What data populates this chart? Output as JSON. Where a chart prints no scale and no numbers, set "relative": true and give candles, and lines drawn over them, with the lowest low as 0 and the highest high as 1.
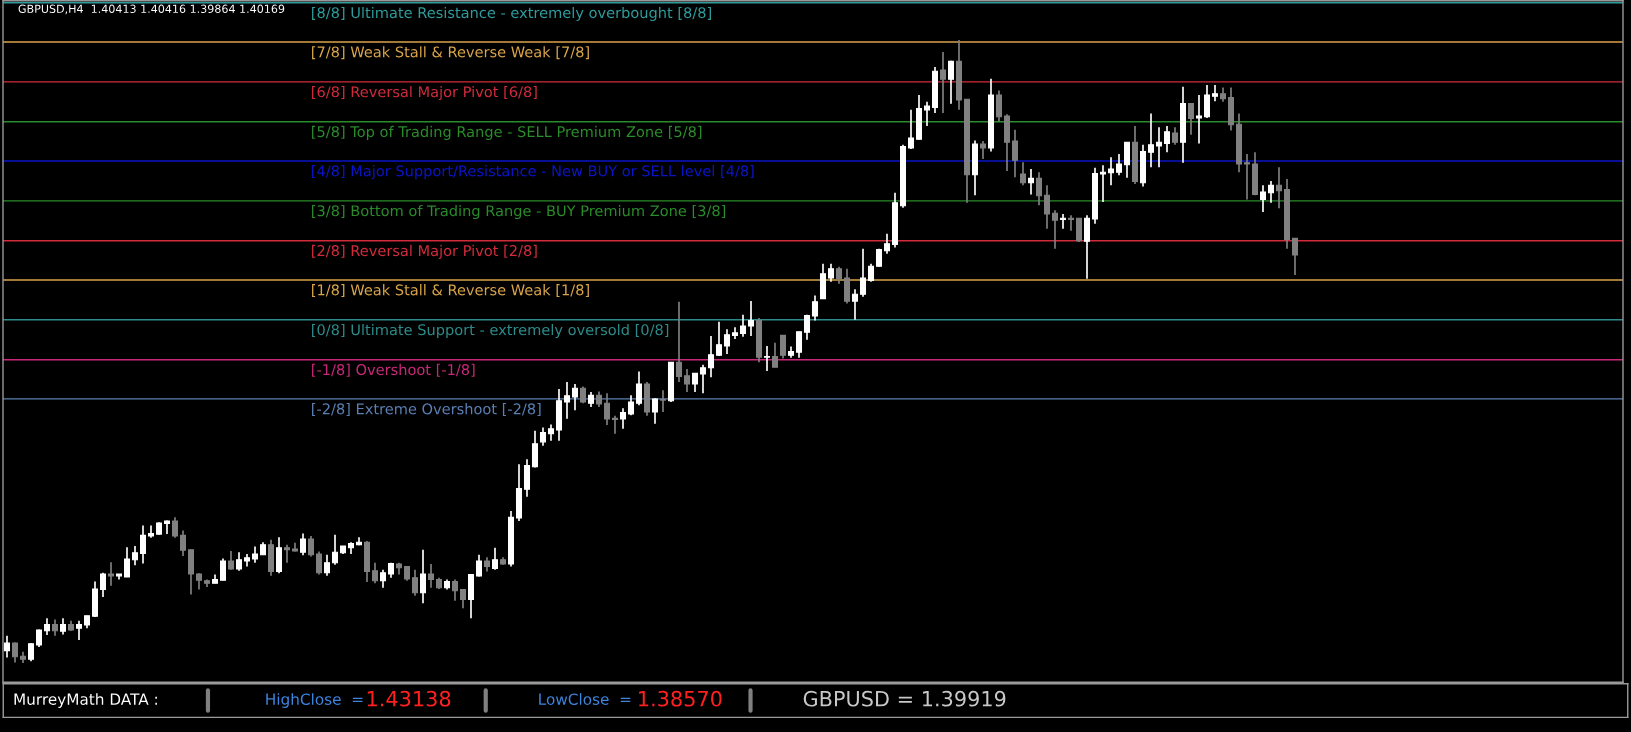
{
  "chart_data": {
    "type": "candlestick",
    "relative": true,
    "title": "GBPUSD,H4  1.40413 1.40416 1.39864 1.40169",
    "colors": [
      "#ffffff",
      "#808080",
      "#808080",
      "#ffffff",
      "#ffffff",
      "#ffffff",
      "#808080",
      "#ffffff",
      "#808080",
      "#ffffff",
      "#ffffff",
      "#ffffff",
      "#ffffff",
      "#808080",
      "#ffffff",
      "#ffffff",
      "#ffffff",
      "#ffffff",
      "#ffffff",
      "#ffffff",
      "#ffffff",
      "#808080",
      "#808080",
      "#808080",
      "#808080",
      "#808080",
      "#ffffff",
      "#ffffff",
      "#808080",
      "#ffffff",
      "#ffffff",
      "#ffffff",
      "#ffffff",
      "#808080",
      "#ffffff",
      "#808080",
      "#808080",
      "#ffffff",
      "#808080",
      "#808080",
      "#ffffff",
      "#ffffff",
      "#ffffff",
      "#ffffff",
      "#ffffff",
      "#808080",
      "#808080",
      "#ffffff",
      "#ffffff",
      "#808080",
      "#808080",
      "#808080",
      "#ffffff",
      "#808080",
      "#808080",
      "#ffffff",
      "#808080",
      "#808080",
      "#ffffff",
      "#ffffff",
      "#808080",
      "#ffffff",
      "#808080",
      "#ffffff",
      "#ffffff",
      "#ffffff",
      "#ffffff",
      "#ffffff",
      "#ffffff",
      "#ffffff",
      "#ffffff",
      "#ffffff",
      "#808080",
      "#ffffff",
      "#808080",
      "#808080",
      "#808080",
      "#ffffff",
      "#ffffff",
      "#ffffff",
      "#808080",
      "#ffffff",
      "#808080",
      "#ffffff",
      "#808080",
      "#808080",
      "#ffffff",
      "#ffffff",
      "#ffffff",
      "#ffffff",
      "#ffffff",
      "#ffffff",
      "#ffffff",
      "#ffffff",
      "#808080",
      "#ffffff",
      "#808080",
      "#808080",
      "#ffffff",
      "#ffffff",
      "#ffffff",
      "#ffffff",
      "#ffffff",
      "#ffffff",
      "#808080",
      "#808080",
      "#ffffff",
      "#ffffff",
      "#ffffff",
      "#ffffff",
      "#ffffff",
      "#ffffff",
      "#ffffff",
      "#ffffff",
      "#ffffff",
      "#ffffff",
      "#ffffff",
      "#808080",
      "#ffffff",
      "#808080",
      "#808080",
      "#ffffff",
      "#808080",
      "#ffffff",
      "#808080",
      "#808080",
      "#808080",
      "#808080",
      "#ffffff",
      "#808080",
      "#808080",
      "#808080",
      "#ffffff",
      "#808080",
      "#808080",
      "#ffffff",
      "#ffffff",
      "#ffffff",
      "#ffffff",
      "#ffffff",
      "#ffffff",
      "#808080",
      "#ffffff",
      "#ffffff",
      "#ffffff",
      "#ffffff",
      "#808080",
      "#ffffff",
      "#808080",
      "#ffffff",
      "#ffffff",
      "#ffffff",
      "#808080",
      "#808080",
      "#808080",
      "#808080",
      "#808080",
      "#ffffff",
      "#ffffff",
      "#808080",
      "#808080",
      "#808080"
    ],
    "categories": [
      null,
      null,
      null,
      null,
      null,
      null,
      null,
      null,
      null,
      null,
      null,
      null,
      null,
      null,
      null,
      null,
      null,
      null,
      null,
      null,
      null,
      null,
      null,
      null,
      null,
      null,
      null,
      null,
      null,
      null,
      null,
      null,
      null,
      null,
      null,
      null,
      null,
      null,
      null,
      null,
      null,
      null,
      null,
      null,
      null,
      null,
      null,
      null,
      null,
      null,
      null,
      null,
      null,
      null,
      null,
      null,
      null,
      null,
      null,
      null,
      null,
      null,
      null,
      null,
      null,
      null,
      null,
      null,
      null,
      null,
      null,
      null,
      null,
      null,
      null,
      null,
      null,
      null,
      null,
      null,
      null,
      null,
      null,
      null,
      null,
      null,
      null,
      null,
      null,
      null,
      null,
      null,
      null,
      null,
      null,
      null,
      null,
      null,
      null,
      null,
      null,
      null,
      null,
      null,
      null,
      null,
      null,
      null,
      null,
      null,
      null,
      null,
      null,
      null,
      null,
      null,
      null,
      null,
      null,
      null,
      null,
      null,
      null,
      null,
      null,
      null,
      null,
      null,
      null,
      null,
      null,
      null,
      null,
      null,
      null,
      null,
      null,
      null,
      null,
      null,
      null,
      null,
      null,
      null,
      null,
      null,
      null,
      null,
      null,
      null,
      null,
      null,
      null,
      null,
      null,
      null,
      null,
      null,
      null,
      null,
      null,
      null
    ],
    "ohlc": [
      [
        0.02,
        0.044,
        0.009,
        0.032
      ],
      [
        0.032,
        0.033,
        0.001,
        0.01
      ],
      [
        0.011,
        0.018,
        0,
        0.006
      ],
      [
        0.006,
        0.032,
        0.003,
        0.031
      ],
      [
        0.029,
        0.054,
        0.026,
        0.053
      ],
      [
        0.052,
        0.072,
        0.045,
        0.062
      ],
      [
        0.062,
        0.07,
        0.044,
        0.052
      ],
      [
        0.051,
        0.072,
        0.046,
        0.062
      ],
      [
        0.062,
        0.068,
        0.052,
        0.053
      ],
      [
        0.056,
        0.068,
        0.037,
        0.062
      ],
      [
        0.061,
        0.076,
        0.056,
        0.076
      ],
      [
        0.075,
        0.131,
        0.074,
        0.119
      ],
      [
        0.118,
        0.145,
        0.106,
        0.143
      ],
      [
        0.143,
        0.162,
        0.124,
        0.14
      ],
      [
        0.14,
        0.143,
        0.134,
        0.143
      ],
      [
        0.138,
        0.186,
        0.138,
        0.167
      ],
      [
        0.166,
        0.188,
        0.157,
        0.177
      ],
      [
        0.176,
        0.221,
        0.16,
        0.205
      ],
      [
        0.204,
        0.221,
        0.201,
        0.208
      ],
      [
        0.207,
        0.226,
        0.206,
        0.225
      ],
      [
        0.224,
        0.229,
        0.207,
        0.228
      ],
      [
        0.228,
        0.234,
        0.201,
        0.204
      ],
      [
        0.205,
        0.213,
        0.172,
        0.181
      ],
      [
        0.182,
        0.182,
        0.11,
        0.143
      ],
      [
        0.143,
        0.144,
        0.118,
        0.133
      ],
      [
        0.132,
        0.134,
        0.122,
        0.128
      ],
      [
        0.128,
        0.142,
        0.128,
        0.134
      ],
      [
        0.133,
        0.168,
        0.133,
        0.164
      ],
      [
        0.164,
        0.18,
        0.15,
        0.151
      ],
      [
        0.151,
        0.178,
        0.148,
        0.166
      ],
      [
        0.164,
        0.175,
        0.155,
        0.169
      ],
      [
        0.167,
        0.187,
        0.161,
        0.175
      ],
      [
        0.174,
        0.194,
        0.174,
        0.19
      ],
      [
        0.19,
        0.198,
        0.14,
        0.147
      ],
      [
        0.147,
        0.202,
        0.144,
        0.185
      ],
      [
        0.185,
        0.19,
        0.161,
        0.182
      ],
      [
        0.183,
        0.193,
        0.179,
        0.18
      ],
      [
        0.178,
        0.208,
        0.173,
        0.199
      ],
      [
        0.199,
        0.204,
        0.171,
        0.174
      ],
      [
        0.175,
        0.179,
        0.142,
        0.145
      ],
      [
        0.145,
        0.174,
        0.14,
        0.161
      ],
      [
        0.161,
        0.206,
        0.158,
        0.178
      ],
      [
        0.177,
        0.188,
        0.175,
        0.188
      ],
      [
        0.185,
        0.194,
        0.175,
        0.192
      ],
      [
        0.19,
        0.202,
        0.189,
        0.194
      ],
      [
        0.194,
        0.196,
        0.13,
        0.147
      ],
      [
        0.148,
        0.161,
        0.128,
        0.132
      ],
      [
        0.132,
        0.15,
        0.121,
        0.145
      ],
      [
        0.143,
        0.161,
        0.137,
        0.16
      ],
      [
        0.159,
        0.161,
        0.142,
        0.153
      ],
      [
        0.155,
        0.156,
        0.132,
        0.135
      ],
      [
        0.137,
        0.15,
        0.108,
        0.113
      ],
      [
        0.113,
        0.182,
        0.096,
        0.143
      ],
      [
        0.143,
        0.159,
        0.121,
        0.134
      ],
      [
        0.134,
        0.137,
        0.119,
        0.121
      ],
      [
        0.121,
        0.134,
        0.118,
        0.131
      ],
      [
        0.131,
        0.134,
        0.1,
        0.116
      ],
      [
        0.118,
        0.118,
        0.088,
        0.102
      ],
      [
        0.102,
        0.143,
        0.072,
        0.142
      ],
      [
        0.14,
        0.174,
        0.139,
        0.164
      ],
      [
        0.164,
        0.17,
        0.147,
        0.155
      ],
      [
        0.152,
        0.185,
        0.15,
        0.166
      ],
      [
        0.166,
        0.17,
        0.158,
        0.159
      ],
      [
        0.159,
        0.244,
        0.155,
        0.234
      ],
      [
        0.233,
        0.319,
        0.228,
        0.28
      ],
      [
        0.279,
        0.327,
        0.267,
        0.317
      ],
      [
        0.315,
        0.373,
        0.314,
        0.352
      ],
      [
        0.355,
        0.378,
        0.349,
        0.37
      ],
      [
        0.368,
        0.383,
        0.357,
        0.376
      ],
      [
        0.374,
        0.44,
        0.357,
        0.421
      ],
      [
        0.419,
        0.451,
        0.392,
        0.429
      ],
      [
        0.427,
        0.448,
        0.406,
        0.441
      ],
      [
        0.441,
        0.444,
        0.417,
        0.419
      ],
      [
        0.417,
        0.435,
        0.411,
        0.43
      ],
      [
        0.43,
        0.436,
        0.411,
        0.416
      ],
      [
        0.417,
        0.433,
        0.382,
        0.392
      ],
      [
        0.393,
        0.397,
        0.368,
        0.391
      ],
      [
        0.392,
        0.409,
        0.376,
        0.402
      ],
      [
        0.4,
        0.43,
        0.398,
        0.419
      ],
      [
        0.417,
        0.468,
        0.414,
        0.448
      ],
      [
        0.448,
        0.451,
        0.397,
        0.403
      ],
      [
        0.403,
        0.425,
        0.384,
        0.424
      ],
      [
        0.423,
        0.438,
        0.403,
        0.422
      ],
      [
        0.421,
        0.483,
        0.419,
        0.483
      ],
      [
        0.483,
        0.58,
        0.451,
        0.46
      ],
      [
        0.461,
        0.472,
        0.435,
        0.448
      ],
      [
        0.448,
        0.465,
        0.435,
        0.465
      ],
      [
        0.464,
        0.479,
        0.433,
        0.474
      ],
      [
        0.474,
        0.525,
        0.459,
        0.495
      ],
      [
        0.494,
        0.548,
        0.493,
        0.511
      ],
      [
        0.509,
        0.536,
        0.496,
        0.527
      ],
      [
        0.526,
        0.539,
        0.52,
        0.53
      ],
      [
        0.529,
        0.559,
        0.524,
        0.541
      ],
      [
        0.541,
        0.581,
        0.525,
        0.55
      ],
      [
        0.55,
        0.554,
        0.483,
        0.491
      ],
      [
        0.491,
        0.509,
        0.469,
        0.492
      ],
      [
        0.492,
        0.514,
        0.475,
        0.475
      ],
      [
        0.526,
        0.526,
        0.489,
        0.494
      ],
      [
        0.494,
        0.508,
        0.49,
        0.5
      ],
      [
        0.499,
        0.532,
        0.49,
        0.532
      ],
      [
        0.531,
        0.559,
        0.519,
        0.558
      ],
      [
        0.557,
        0.59,
        0.55,
        0.58
      ],
      [
        0.585,
        0.641,
        0.585,
        0.625
      ],
      [
        0.618,
        0.641,
        0.612,
        0.633
      ],
      [
        0.633,
        0.636,
        0.609,
        0.617
      ],
      [
        0.618,
        0.633,
        0.577,
        0.581
      ],
      [
        0.581,
        0.6,
        0.551,
        0.592
      ],
      [
        0.592,
        0.665,
        0.588,
        0.618
      ],
      [
        0.614,
        0.641,
        0.612,
        0.637
      ],
      [
        0.637,
        0.665,
        0.636,
        0.664
      ],
      [
        0.662,
        0.689,
        0.657,
        0.673
      ],
      [
        0.672,
        0.755,
        0.667,
        0.739
      ],
      [
        0.734,
        0.832,
        0.731,
        0.829
      ],
      [
        0.827,
        0.888,
        0.825,
        0.843
      ],
      [
        0.841,
        0.912,
        0.84,
        0.89
      ],
      [
        0.888,
        0.901,
        0.862,
        0.894
      ],
      [
        0.892,
        0.957,
        0.883,
        0.95
      ],
      [
        0.952,
        0.981,
        0.883,
        0.937
      ],
      [
        0.937,
        0.967,
        0.898,
        0.966
      ],
      [
        0.966,
        1.0,
        0.888,
        0.904
      ],
      [
        0.905,
        0.905,
        0.739,
        0.784
      ],
      [
        0.784,
        0.839,
        0.751,
        0.833
      ],
      [
        0.833,
        0.838,
        0.809,
        0.827
      ],
      [
        0.827,
        0.938,
        0.821,
        0.912
      ],
      [
        0.912,
        0.919,
        0.869,
        0.877
      ],
      [
        0.878,
        0.881,
        0.79,
        0.836
      ],
      [
        0.838,
        0.856,
        0.78,
        0.807
      ],
      [
        0.785,
        0.804,
        0.767,
        0.771
      ],
      [
        0.771,
        0.793,
        0.752,
        0.778
      ],
      [
        0.778,
        0.788,
        0.735,
        0.75
      ],
      [
        0.751,
        0.767,
        0.697,
        0.721
      ],
      [
        0.722,
        0.727,
        0.665,
        0.711
      ],
      [
        0.712,
        0.721,
        0.697,
        0.714
      ],
      [
        0.714,
        0.719,
        0.694,
        0.712
      ],
      [
        0.714,
        0.714,
        0.676,
        0.678
      ],
      [
        0.677,
        0.719,
        0.617,
        0.714
      ],
      [
        0.713,
        0.795,
        0.705,
        0.786
      ],
      [
        0.785,
        0.799,
        0.74,
        0.788
      ],
      [
        0.787,
        0.812,
        0.767,
        0.793
      ],
      [
        0.788,
        0.817,
        0.783,
        0.801
      ],
      [
        0.8,
        0.836,
        0.779,
        0.836
      ],
      [
        0.836,
        0.862,
        0.769,
        0.773
      ],
      [
        0.771,
        0.832,
        0.765,
        0.821
      ],
      [
        0.82,
        0.882,
        0.796,
        0.832
      ],
      [
        0.83,
        0.86,
        0.796,
        0.836
      ],
      [
        0.834,
        0.862,
        0.82,
        0.853
      ],
      [
        0.851,
        0.86,
        0.832,
        0.836
      ],
      [
        0.836,
        0.925,
        0.803,
        0.898
      ],
      [
        0.898,
        0.899,
        0.848,
        0.874
      ],
      [
        0.875,
        0.912,
        0.834,
        0.878
      ],
      [
        0.877,
        0.928,
        0.875,
        0.912
      ],
      [
        0.91,
        0.928,
        0.902,
        0.914
      ],
      [
        0.914,
        0.924,
        0.901,
        0.906
      ],
      [
        0.908,
        0.924,
        0.855,
        0.864
      ],
      [
        0.865,
        0.882,
        0.788,
        0.801
      ],
      [
        0.803,
        0.817,
        0.744,
        0.801
      ],
      [
        0.801,
        0.82,
        0.751,
        0.752
      ],
      [
        0.744,
        0.767,
        0.724,
        0.756
      ],
      [
        0.755,
        0.774,
        0.739,
        0.767
      ],
      [
        0.767,
        0.796,
        0.73,
        0.758
      ],
      [
        0.76,
        0.777,
        0.665,
        0.68
      ],
      [
        0.682,
        0.682,
        0.623,
        0.655
      ]
    ],
    "ref_lines": [
      {
        "axis": "y",
        "value": 1.06,
        "label": "[8/8] Ultimate Resistance - extremely overbought [8/8]",
        "color": "#2e9c9c"
      },
      {
        "axis": "y",
        "value": 0.997,
        "label": "[7/8] Weak Stall & Reverse Weak [7/8]",
        "color": "#daa54a"
      },
      {
        "axis": "y",
        "value": 0.933,
        "label": "[6/8] Reversal Major Pivot [6/8]",
        "color": "#d22b3c"
      },
      {
        "axis": "y",
        "value": 0.869,
        "label": "[5/8] Top of Trading Range - SELL Premium Zone [5/8]",
        "color": "#2a8c2a"
      },
      {
        "axis": "y",
        "value": 0.806,
        "label": "[4/8] Major Support/Resistance - New BUY or SELL level [4/8]",
        "color": "#0a14c8"
      },
      {
        "axis": "y",
        "value": 0.742,
        "label": "[3/8] Bottom of Trading Range - BUY Premium Zone [3/8]",
        "color": "#2a8c2a"
      },
      {
        "axis": "y",
        "value": 0.678,
        "label": "[2/8] Reversal Major Pivot [2/8]",
        "color": "#d22b3c"
      },
      {
        "axis": "y",
        "value": 0.615,
        "label": "[1/8] Weak Stall & Reverse Weak [1/8]",
        "color": "#daa54a"
      },
      {
        "axis": "y",
        "value": 0.551,
        "label": "[0/8] Ultimate Support - extremely oversold [0/8]",
        "color": "#2e8b8b"
      },
      {
        "axis": "y",
        "value": 0.487,
        "label": "[-1/8] Overshoot [-1/8]",
        "color": "#c8287a"
      },
      {
        "axis": "y",
        "value": 0.424,
        "label": "[-2/8] Extreme Overshoot [-2/8]",
        "color": "#5a80b4"
      }
    ],
    "annotations": [
      "MurreyMath DATA :",
      "HighClose  =",
      "1.43138",
      "LowClose  =",
      "1.38570",
      "GBPUSD = 1.39919"
    ]
  }
}
